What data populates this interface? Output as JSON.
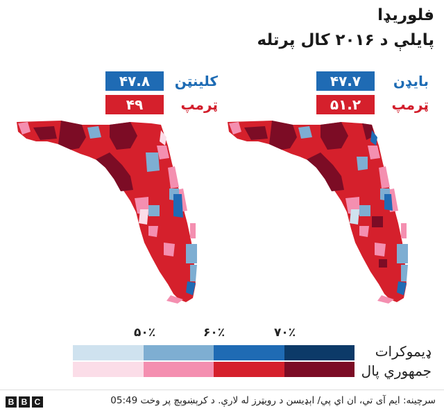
{
  "title": {
    "line1": "فلوریډا",
    "line2": "پایلې د ۲۰۱۶ کال پرتله"
  },
  "panels": {
    "y2020": {
      "dem_name": "بایډن",
      "dem_value": "۴۷.۷",
      "rep_name": "ټرمپ",
      "rep_value": "۵۱.۲"
    },
    "y2016": {
      "dem_name": "کلینټن",
      "dem_value": "۴۷.۸",
      "rep_name": "ټرمپ",
      "rep_value": "۴۹"
    }
  },
  "legend": {
    "ticks": [
      "۵۰٪",
      "۶۰٪",
      "۷۰٪"
    ],
    "dem_label": "ډیموکرات",
    "rep_label": "جمهوري پال",
    "dem_colors": [
      "#cfe2ef",
      "#7eaed2",
      "#1f6bb4",
      "#0c3a68"
    ],
    "rep_colors": [
      "#fbdde8",
      "#f48fb0",
      "#d5202c",
      "#7c0c25"
    ]
  },
  "footer": {
    "logo": [
      "B",
      "B",
      "C"
    ],
    "source": "سرچینه: ایم آی تي، ان اي پي/ اېډیسن د رویټرز له لارې. د کرېښوېچ پر وخت 05:49"
  },
  "colors": {
    "dem_accent": "#1f6bb4",
    "rep_accent": "#d5202c"
  }
}
